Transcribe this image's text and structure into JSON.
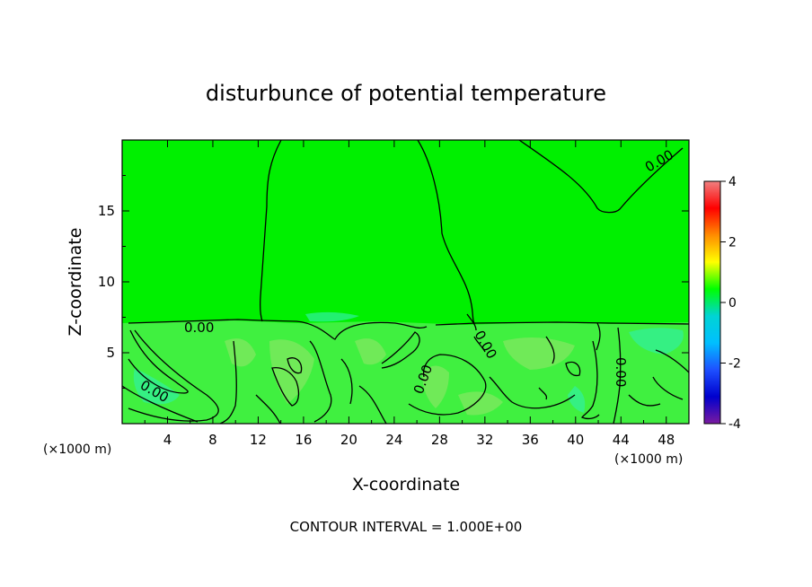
{
  "chart_data": {
    "type": "heatmap",
    "title": "disturbunce of potential temperature",
    "xlabel": "X-coordinate",
    "ylabel": "Z-coordinate",
    "x_unit_left": "(×1000 m)",
    "x_unit_right": "(×1000 m)",
    "footer": "CONTOUR INTERVAL = 1.000E+00",
    "xlim": [
      0,
      50
    ],
    "ylim": [
      0,
      20
    ],
    "x_ticks": [
      4,
      8,
      12,
      16,
      20,
      24,
      28,
      32,
      36,
      40,
      44,
      48
    ],
    "y_ticks": [
      5,
      10,
      15
    ],
    "colorbar": {
      "range": [
        -4,
        4
      ],
      "ticks": [
        4,
        2,
        0,
        -2,
        -4
      ],
      "colors": [
        "#f08080",
        "#ff0000",
        "#ff8c00",
        "#ffff00",
        "#00ff00",
        "#00d4d4",
        "#00bfff",
        "#1e50ff",
        "#0000cd",
        "#7a1aa0"
      ]
    },
    "field_colors": {
      "background": "#00f000",
      "boundary_layer": "#40f040",
      "light_patch": "#80e860",
      "cool_patch": "#30f0a0"
    },
    "contour_label": "0.00",
    "contour_level": 0,
    "contour_interval": 1.0
  }
}
